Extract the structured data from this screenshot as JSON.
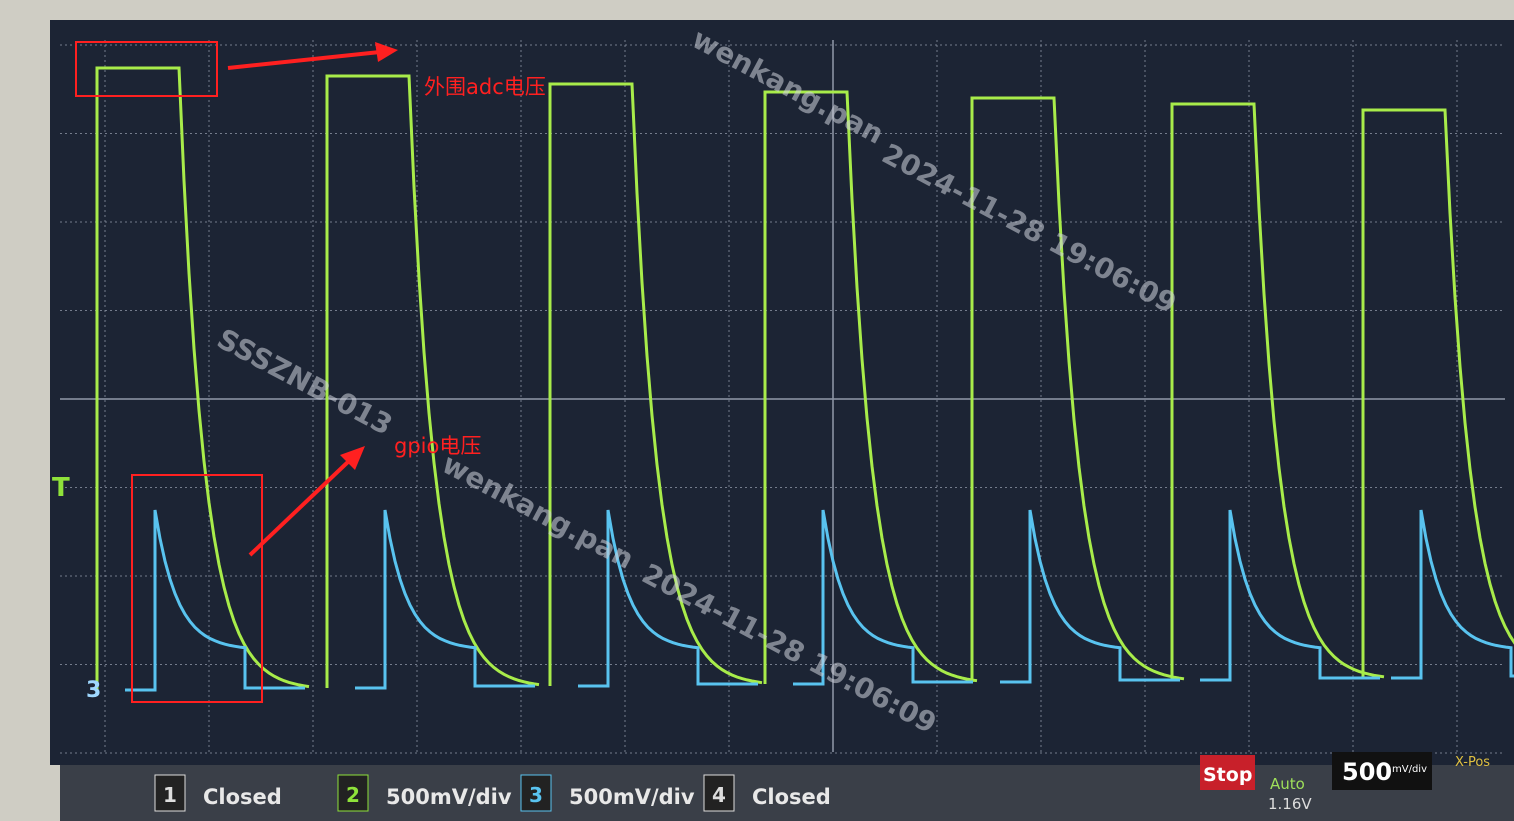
{
  "annotations": {
    "adc": "外围adc电压",
    "gpio": "gpio电压"
  },
  "markers": {
    "trigger": "T",
    "channel3": "3"
  },
  "watermark": {
    "id": "SSSZNB-013",
    "user": "wenkang.pan",
    "time": "2024-11-28 19:06:09"
  },
  "channels": [
    {
      "number": "1",
      "setting": "Closed"
    },
    {
      "number": "2",
      "setting": "500mV/div"
    },
    {
      "number": "3",
      "setting": "500mV/div"
    },
    {
      "number": "4",
      "setting": "Closed"
    }
  ],
  "status": {
    "run": "Stop",
    "mode": "Auto",
    "trigger_level": "1.16V",
    "timebase": "500",
    "timebase_unit": "mV/div",
    "xpos": "X-Pos"
  }
}
